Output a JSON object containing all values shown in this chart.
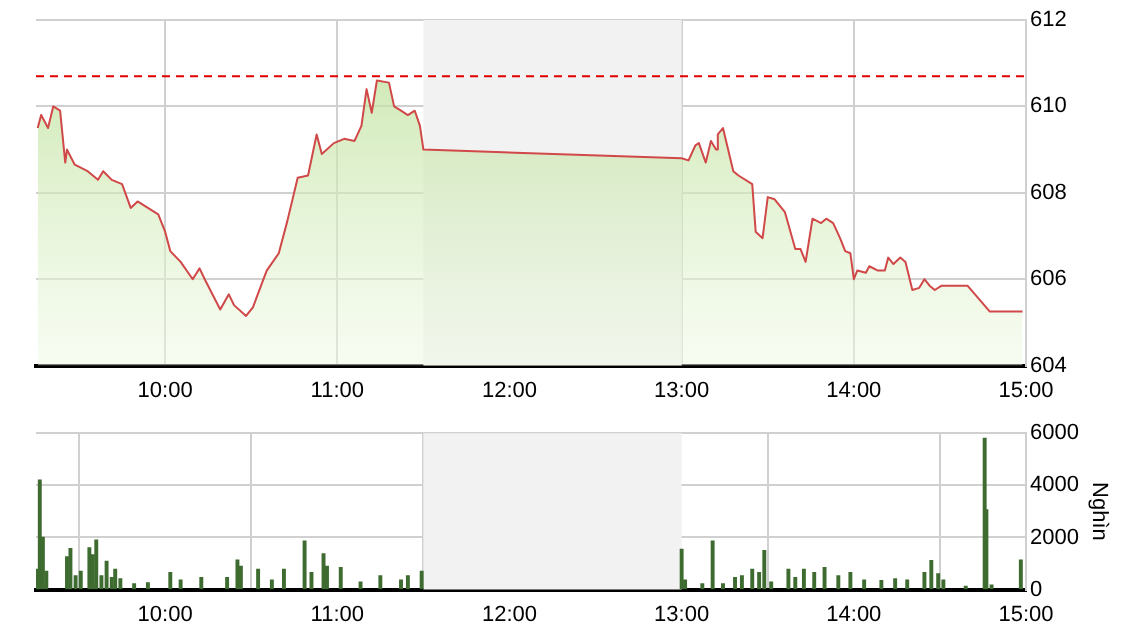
{
  "chart_data": [
    {
      "type": "area",
      "x": [
        9.26,
        9.28,
        9.32,
        9.35,
        9.39,
        9.42,
        9.43,
        9.475,
        9.55,
        9.61,
        9.64,
        9.69,
        9.75,
        9.8,
        9.84,
        9.96,
        10.0,
        10.03,
        10.09,
        10.16,
        10.2,
        10.23,
        10.32,
        10.37,
        10.4,
        10.47,
        10.51,
        10.59,
        10.66,
        10.71,
        10.77,
        10.83,
        10.88,
        10.91,
        10.98,
        11.04,
        11.1,
        11.14,
        11.17,
        11.2,
        11.23,
        11.3,
        11.33,
        11.37,
        11.41,
        11.45,
        11.48,
        11.5,
        13.0,
        13.04,
        13.08,
        13.1,
        13.14,
        13.17,
        13.2,
        13.21,
        13.24,
        13.3,
        13.33,
        13.41,
        13.43,
        13.47,
        13.5,
        13.54,
        13.6,
        13.66,
        13.69,
        13.72,
        13.76,
        13.81,
        13.84,
        13.88,
        13.92,
        13.95,
        13.98,
        14.0,
        14.02,
        14.07,
        14.09,
        14.14,
        14.18,
        14.2,
        14.23,
        14.27,
        14.3,
        14.34,
        14.38,
        14.41,
        14.44,
        14.47,
        14.51,
        14.66,
        14.79,
        14.98
      ],
      "series": [
        {
          "color": "#d04848",
          "values": [
            609.5,
            609.8,
            609.5,
            610.0,
            609.9,
            608.7,
            609.0,
            608.65,
            608.5,
            608.3,
            608.5,
            608.3,
            608.2,
            607.65,
            607.8,
            607.5,
            607.1,
            606.65,
            606.4,
            606.0,
            606.25,
            606.0,
            605.3,
            605.65,
            605.4,
            605.15,
            605.35,
            606.2,
            606.6,
            607.35,
            608.35,
            608.4,
            609.35,
            608.9,
            609.15,
            609.25,
            609.2,
            609.55,
            610.4,
            609.85,
            610.6,
            610.55,
            610.0,
            609.9,
            609.8,
            609.9,
            609.55,
            609.0,
            608.8,
            608.75,
            609.1,
            609.15,
            608.7,
            609.2,
            609.0,
            609.35,
            609.5,
            608.5,
            608.4,
            608.2,
            607.1,
            606.95,
            607.9,
            607.85,
            607.55,
            606.7,
            606.7,
            606.4,
            607.4,
            607.3,
            607.4,
            607.3,
            606.95,
            606.65,
            606.6,
            606.0,
            606.2,
            606.15,
            606.3,
            606.2,
            606.2,
            606.5,
            606.35,
            606.5,
            606.4,
            605.75,
            605.8,
            606.0,
            605.85,
            605.75,
            605.85,
            605.85,
            605.25,
            605.25
          ]
        }
      ],
      "xlim": [
        9.25,
        15
      ],
      "xticks": [
        {
          "value": 10,
          "label": "10:00"
        },
        {
          "value": 11,
          "label": "11:00"
        },
        {
          "value": 12,
          "label": "12:00"
        },
        {
          "value": 13,
          "label": "13:00"
        },
        {
          "value": 14,
          "label": "14:00"
        },
        {
          "value": 15,
          "label": "15:00"
        }
      ],
      "ylim": [
        604,
        612
      ],
      "yticks": [
        604,
        606,
        608,
        610,
        612
      ],
      "ref_lines": [
        {
          "axis": "y",
          "value": 610.7,
          "color": "#e00000",
          "line_style": "dashed"
        }
      ],
      "bands": [
        {
          "axis": "x",
          "from": 11.5,
          "to": 13,
          "color": "#f2f2f2"
        }
      ],
      "grid": true,
      "legend": false
    },
    {
      "type": "bar",
      "ylabel": "Nghìn",
      "x": [
        9.255,
        9.272,
        9.29,
        9.31,
        9.43,
        9.45,
        9.48,
        9.51,
        9.56,
        9.58,
        9.6,
        9.63,
        9.66,
        9.69,
        9.71,
        9.74,
        9.82,
        9.9,
        10.03,
        10.09,
        10.21,
        10.36,
        10.42,
        10.44,
        10.54,
        10.62,
        10.69,
        10.81,
        10.85,
        10.92,
        10.94,
        11.02,
        11.135,
        11.25,
        11.37,
        11.41,
        11.49,
        13.0,
        13.02,
        13.12,
        13.18,
        13.24,
        13.31,
        13.35,
        13.41,
        13.45,
        13.48,
        13.52,
        13.62,
        13.66,
        13.71,
        13.77,
        13.83,
        13.91,
        13.98,
        14.06,
        14.16,
        14.24,
        14.31,
        14.41,
        14.45,
        14.49,
        14.52,
        14.65,
        14.76,
        14.77,
        14.8,
        14.97
      ],
      "series": [
        {
          "color": "#3e6b30",
          "values": [
            770,
            4200,
            2000,
            700,
            1250,
            1570,
            530,
            700,
            1600,
            1330,
            1900,
            530,
            1080,
            460,
            770,
            410,
            220,
            260,
            650,
            360,
            460,
            460,
            1130,
            890,
            770,
            360,
            770,
            1860,
            650,
            1370,
            890,
            840,
            290,
            530,
            360,
            530,
            700,
            1540,
            360,
            220,
            1860,
            220,
            460,
            530,
            770,
            650,
            1490,
            290,
            770,
            460,
            770,
            650,
            840,
            530,
            650,
            360,
            340,
            410,
            360,
            650,
            1110,
            600,
            360,
            120,
            5800,
            3060,
            170,
            1130
          ]
        }
      ],
      "xlim": [
        9.25,
        15
      ],
      "xticks": [
        {
          "value": 10,
          "label": "10:00"
        },
        {
          "value": 11,
          "label": "11:00"
        },
        {
          "value": 12,
          "label": "12:00"
        },
        {
          "value": 13,
          "label": "13:00"
        },
        {
          "value": 14,
          "label": "14:00"
        },
        {
          "value": 15,
          "label": "15:00"
        }
      ],
      "ylim": [
        0,
        6000
      ],
      "yticks": [
        0,
        2000,
        4000,
        6000
      ],
      "bands": [
        {
          "axis": "x",
          "from": 11.5,
          "to": 13,
          "color": "#f2f2f2"
        }
      ],
      "grid": true,
      "legend": false
    }
  ]
}
